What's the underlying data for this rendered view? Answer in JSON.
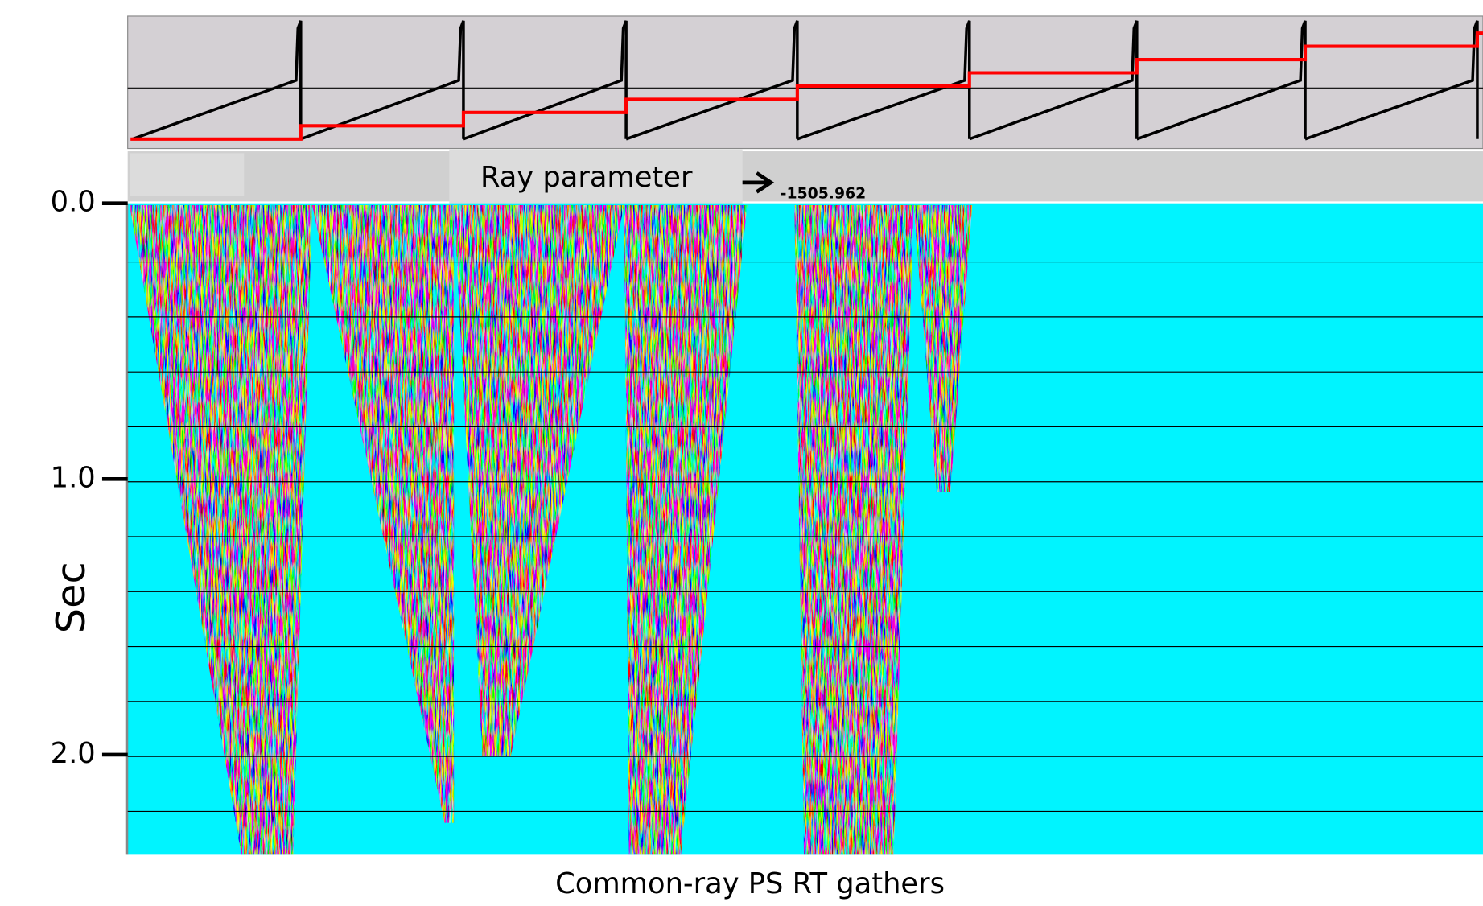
{
  "figure": {
    "header_label": "Ray parameter",
    "header_value": "-1505.962",
    "y_axis": {
      "label": "Sec",
      "ticks": [
        {
          "value": 0,
          "label": "0.0"
        },
        {
          "value": 1,
          "label": "1.0"
        },
        {
          "value": 2,
          "label": "2.0"
        }
      ]
    },
    "caption": "Common-ray PS RT gathers"
  }
}
